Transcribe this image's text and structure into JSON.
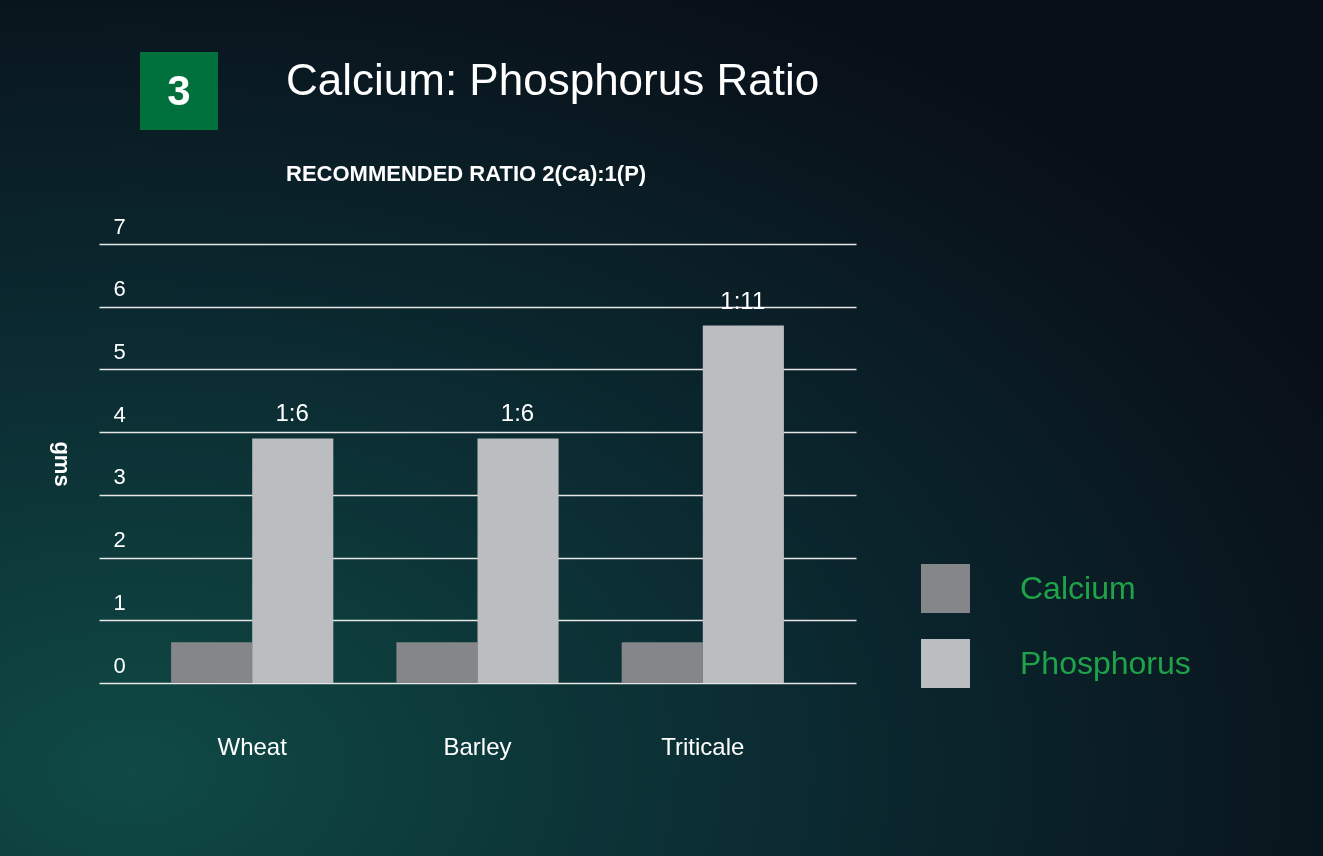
{
  "chart_data": {
    "type": "bar",
    "title": "Calcium: Phosphorus Ratio",
    "subtitle": "RECOMMENDED RATIO 2(Ca):1(P)",
    "ylabel": "gms",
    "annotations": [
      "3",
      {
        "text": "1:6",
        "x": "Wheat",
        "y": 3.9
      },
      {
        "text": "1:6",
        "x": "Barley",
        "y": 3.9
      },
      {
        "text": "1:11",
        "x": "Triticale",
        "y": 5.7
      }
    ],
    "categories": [
      "Wheat",
      "Barley",
      "Triticale"
    ],
    "series": [
      {
        "name": "Calcium",
        "color": "#858689",
        "values": [
          0.65,
          0.65,
          0.65
        ]
      },
      {
        "name": "Phosphorus",
        "color": "#bcbdc0",
        "values": [
          3.9,
          3.9,
          5.7
        ]
      }
    ],
    "ylim": [
      0,
      7
    ],
    "yticks": [
      0,
      1,
      2,
      3,
      4,
      5,
      6,
      7
    ],
    "grid": "y",
    "legend": "right"
  }
}
